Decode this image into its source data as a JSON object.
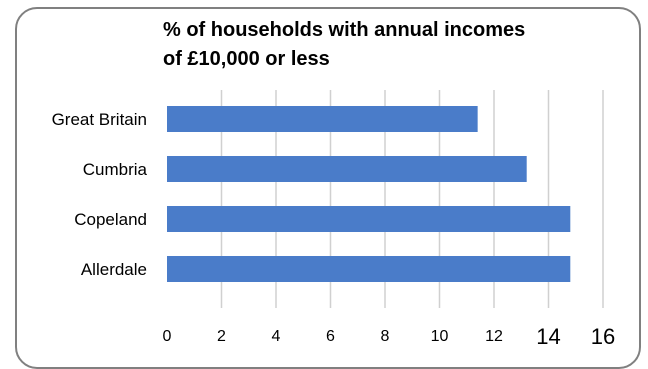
{
  "chart_data": {
    "type": "bar",
    "orientation": "horizontal",
    "title_lines": [
      "% of households with annual incomes",
      "of £10,000 or less"
    ],
    "categories": [
      "Great Britain",
      "Cumbria",
      "Copeland",
      "Allerdale"
    ],
    "values": [
      11.4,
      13.2,
      14.8,
      14.8
    ],
    "xlim": [
      0,
      16
    ],
    "x_ticks": [
      0,
      2,
      4,
      6,
      8,
      10,
      12,
      14,
      16
    ],
    "grid": true,
    "legend": "none",
    "bar_color": "#4a7cc9"
  }
}
